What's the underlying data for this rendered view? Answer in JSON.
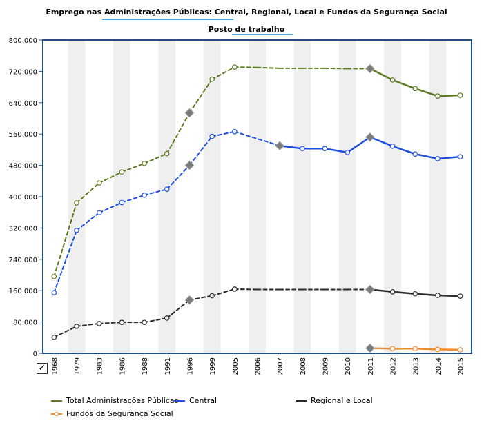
{
  "header": {
    "title": "Emprego nas Administrações Públicas: Central, Regional, Local e Fundos da Segurança Social",
    "subtitle": "Posto de trabalho"
  },
  "checkbox_icon": "checkmark-icon",
  "colors": {
    "total": "#5b7a1e",
    "central": "#1e4fe0",
    "regional": "#2b2b2b",
    "fundos": "#f08a2a",
    "frame": "#1d4f80",
    "underline": "#4aa3df"
  },
  "chart_data": {
    "type": "line",
    "title": "Emprego nas Administrações Públicas: Central, Regional, Local e Fundos da Segurança Social",
    "subtitle": "Posto de trabalho",
    "categories": [
      "1968",
      "1979",
      "1983",
      "1986",
      "1988",
      "1991",
      "1996",
      "1999",
      "2005",
      "2006",
      "2007",
      "2008",
      "2009",
      "2010",
      "2011",
      "2012",
      "2013",
      "2014",
      "2015"
    ],
    "y_ticks": [
      "0",
      "80.000",
      "160.000",
      "240.000",
      "320.000",
      "400.000",
      "480.000",
      "560.000",
      "640.000",
      "720.000",
      "800.000"
    ],
    "ylim": [
      0,
      800000
    ],
    "grid": "alternating vertical bands",
    "legend_position": "bottom",
    "series": [
      {
        "name": "Total Administrações Públicas",
        "color_key": "total",
        "values": [
          196000,
          384000,
          435000,
          463000,
          485000,
          510000,
          614000,
          700000,
          731000,
          730000,
          728000,
          728000,
          728000,
          727000,
          727000,
          698000,
          676000,
          657000,
          659000
        ],
        "dashed_until": 14,
        "markers": {
          "0": "circle",
          "1": "circle",
          "2": "circle",
          "3": "circle",
          "4": "circle",
          "5": "circle",
          "6": "diamond",
          "7": "circle",
          "8": "circle",
          "14": "diamond",
          "15": "circle",
          "16": "circle",
          "17": "circle",
          "18": "circle"
        }
      },
      {
        "name": "Central",
        "color_key": "central",
        "values": [
          155000,
          314000,
          359000,
          385000,
          404000,
          419000,
          480000,
          554000,
          566000,
          null,
          530000,
          523000,
          523000,
          513000,
          552000,
          529000,
          509000,
          497000,
          502000
        ],
        "dashed_until": 10,
        "markers": {
          "0": "circle",
          "1": "circle",
          "2": "circle",
          "3": "circle",
          "4": "circle",
          "5": "circle",
          "6": "diamond",
          "7": "circle",
          "8": "circle",
          "10": "diamond",
          "11": "circle",
          "12": "circle",
          "13": "circle",
          "14": "diamond",
          "15": "circle",
          "16": "circle",
          "17": "circle",
          "18": "circle"
        }
      },
      {
        "name": "Regional e Local",
        "color_key": "regional",
        "values": [
          41000,
          69000,
          76000,
          79000,
          79000,
          90000,
          136000,
          147000,
          164000,
          163000,
          163000,
          163000,
          163000,
          163000,
          163000,
          157000,
          152000,
          148000,
          146000
        ],
        "dashed_until": 14,
        "markers": {
          "0": "circle",
          "1": "circle",
          "2": "circle",
          "3": "circle",
          "4": "circle",
          "5": "circle",
          "6": "diamond",
          "7": "circle",
          "8": "circle",
          "14": "diamond",
          "15": "circle",
          "16": "circle",
          "17": "circle",
          "18": "circle"
        }
      },
      {
        "name": "Fundos da Segurança Social",
        "color_key": "fundos",
        "values": [
          null,
          null,
          null,
          null,
          null,
          null,
          null,
          null,
          null,
          null,
          null,
          null,
          null,
          null,
          13000,
          12000,
          12000,
          10000,
          9000
        ],
        "dashed_until": 14,
        "markers": {
          "14": "diamond",
          "15": "circle",
          "16": "circle",
          "17": "circle",
          "18": "circle"
        }
      }
    ]
  }
}
